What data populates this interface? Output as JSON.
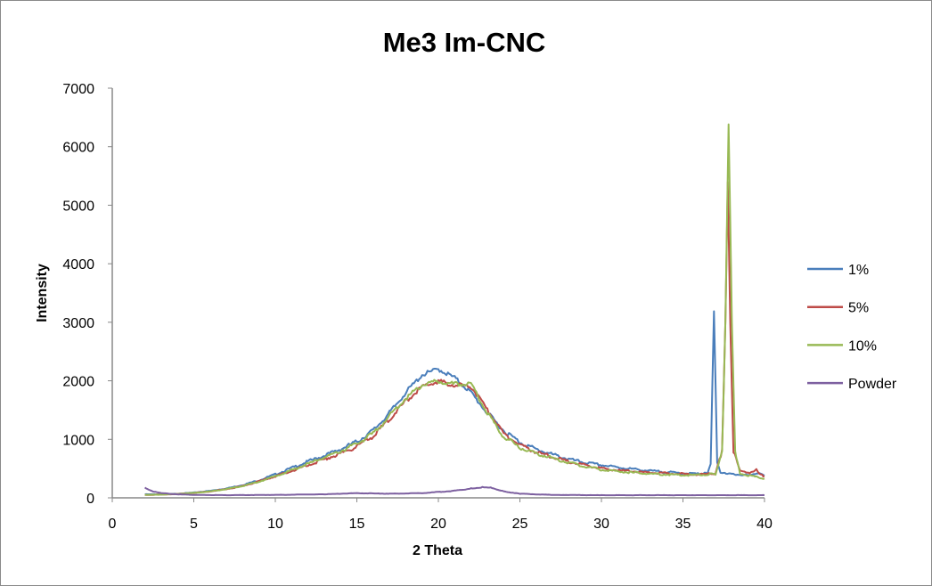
{
  "chart_data": {
    "type": "line",
    "title": "Me3 Im-CNC",
    "xlabel": "2 Theta",
    "ylabel": "Intensity",
    "xlim": [
      0,
      40
    ],
    "ylim": [
      0,
      7000
    ],
    "xticks": [
      0,
      5,
      10,
      15,
      20,
      25,
      30,
      35,
      40
    ],
    "yticks": [
      0,
      1000,
      2000,
      3000,
      4000,
      5000,
      6000,
      7000
    ],
    "grid": false,
    "legend_position": "right",
    "series": [
      {
        "name": "1%",
        "color": "#4A7EBB",
        "x": [
          2,
          3,
          4,
          5,
          6,
          7,
          8,
          9,
          10,
          11,
          12,
          13,
          14,
          15,
          16,
          17,
          18,
          19,
          20,
          21,
          22,
          23,
          24,
          25,
          26,
          27,
          28,
          29,
          30,
          31,
          32,
          33,
          34,
          35,
          36,
          36.5,
          36.7,
          36.9,
          37.1,
          37.3,
          38,
          39,
          39.5,
          40
        ],
        "y": [
          60,
          60,
          70,
          90,
          120,
          160,
          220,
          300,
          400,
          510,
          620,
          720,
          830,
          960,
          1150,
          1450,
          1800,
          2100,
          2200,
          2050,
          1800,
          1450,
          1150,
          950,
          830,
          740,
          660,
          600,
          560,
          520,
          490,
          460,
          440,
          420,
          410,
          420,
          600,
          3220,
          600,
          420,
          400,
          390,
          420,
          380
        ]
      },
      {
        "name": "5%",
        "color": "#BE4B48",
        "x": [
          2,
          3,
          4,
          5,
          6,
          7,
          8,
          9,
          10,
          11,
          12,
          13,
          14,
          15,
          16,
          17,
          18,
          19,
          20,
          21,
          22,
          23,
          24,
          25,
          26,
          27,
          28,
          29,
          30,
          31,
          32,
          33,
          34,
          35,
          36,
          37,
          37.4,
          37.6,
          37.75,
          37.9,
          38.1,
          38.5,
          39,
          39.5,
          39.7,
          40
        ],
        "y": [
          50,
          55,
          65,
          85,
          110,
          150,
          200,
          280,
          370,
          460,
          560,
          660,
          760,
          880,
          1050,
          1350,
          1650,
          1900,
          1990,
          1930,
          1900,
          1500,
          1100,
          900,
          780,
          700,
          620,
          560,
          500,
          470,
          450,
          430,
          420,
          410,
          400,
          420,
          800,
          3000,
          5400,
          3000,
          800,
          450,
          420,
          480,
          400,
          370
        ]
      },
      {
        "name": "10%",
        "color": "#98B954",
        "x": [
          2,
          3,
          4,
          5,
          6,
          7,
          8,
          9,
          10,
          11,
          12,
          13,
          14,
          15,
          16,
          17,
          18,
          19,
          20,
          21,
          22,
          23,
          24,
          25,
          26,
          27,
          28,
          29,
          30,
          31,
          32,
          33,
          34,
          35,
          36,
          37,
          37.4,
          37.6,
          37.8,
          38.0,
          38.2,
          38.5,
          39,
          39.5,
          40
        ],
        "y": [
          50,
          55,
          65,
          85,
          110,
          150,
          200,
          280,
          370,
          470,
          580,
          690,
          800,
          920,
          1100,
          1400,
          1700,
          1930,
          2000,
          1940,
          1940,
          1450,
          1050,
          860,
          760,
          680,
          600,
          540,
          480,
          450,
          430,
          410,
          400,
          390,
          390,
          410,
          800,
          3000,
          6350,
          3000,
          800,
          420,
          380,
          360,
          330
        ]
      },
      {
        "name": "Powder",
        "color": "#7D60A0",
        "x": [
          2,
          2.5,
          3,
          4,
          5,
          7,
          10,
          13,
          15,
          17,
          19,
          20,
          21,
          22,
          22.7,
          23.3,
          24,
          25,
          27,
          30,
          35,
          40
        ],
        "y": [
          170,
          110,
          80,
          60,
          50,
          45,
          50,
          60,
          80,
          70,
          80,
          100,
          120,
          160,
          180,
          170,
          110,
          70,
          50,
          45,
          45,
          45
        ]
      }
    ]
  }
}
